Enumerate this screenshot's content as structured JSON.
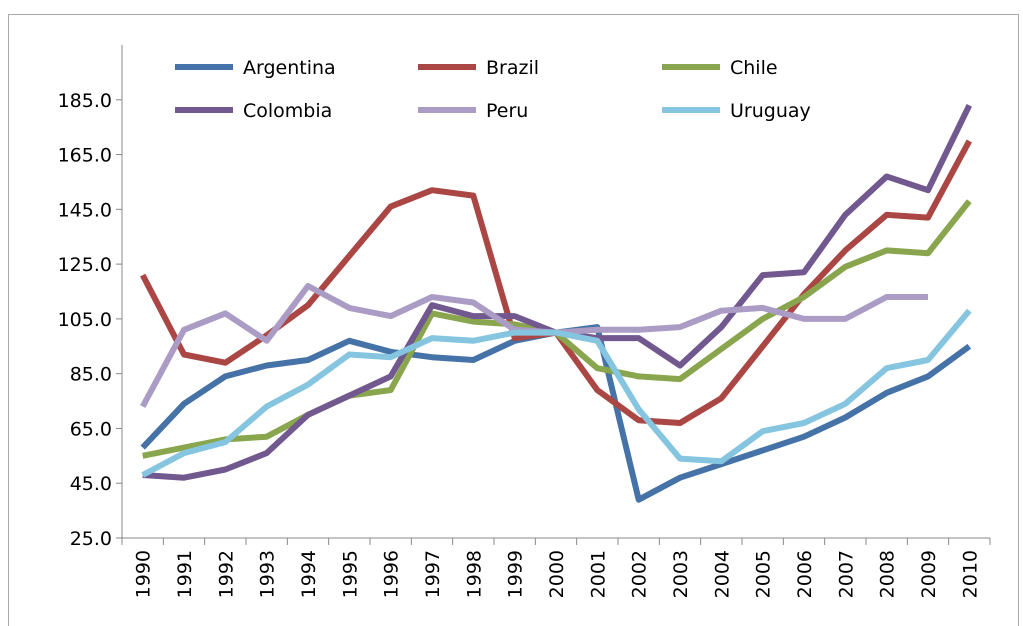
{
  "chart_data": {
    "type": "line",
    "categories": [
      "1990",
      "1991",
      "1992",
      "1993",
      "1994",
      "1995",
      "1996",
      "1997",
      "1998",
      "1999",
      "2000",
      "2001",
      "2002",
      "2003",
      "2004",
      "2005",
      "2006",
      "2007",
      "2008",
      "2009",
      "2010"
    ],
    "series": [
      {
        "name": "Argentina",
        "color": "#4572a7",
        "values": [
          58,
          74,
          84,
          88,
          90,
          97,
          93,
          91,
          90,
          97,
          100,
          102,
          39,
          47,
          52,
          57,
          62,
          69,
          78,
          84,
          95
        ]
      },
      {
        "name": "Brazil",
        "color": "#aa4643",
        "values": [
          121,
          92,
          89,
          99,
          110,
          128,
          146,
          152,
          150,
          98,
          100,
          79,
          68,
          67,
          76,
          95,
          114,
          130,
          143,
          142,
          170
        ]
      },
      {
        "name": "Chile",
        "color": "#89a54e",
        "values": [
          55,
          58,
          61,
          62,
          70,
          77,
          79,
          107,
          104,
          103,
          100,
          87,
          84,
          83,
          94,
          105,
          113,
          124,
          130,
          129,
          148
        ]
      },
      {
        "name": "Colombia",
        "color": "#71588f",
        "values": [
          48,
          47,
          50,
          56,
          70,
          77,
          84,
          110,
          106,
          106,
          100,
          98,
          98,
          88,
          102,
          121,
          122,
          143,
          157,
          152,
          183
        ]
      },
      {
        "name": "Peru",
        "color": "#ab9cc6",
        "values": [
          73,
          101,
          107,
          97,
          117,
          109,
          106,
          113,
          111,
          101,
          100,
          101,
          101,
          102,
          108,
          109,
          105,
          105,
          113,
          113,
          null
        ]
      },
      {
        "name": "Uruguay",
        "color": "#86c5e0",
        "values": [
          48,
          56,
          60,
          73,
          81,
          92,
          91,
          98,
          97,
          100,
          100,
          97,
          72,
          54,
          53,
          64,
          67,
          74,
          87,
          90,
          108
        ]
      }
    ],
    "ylim": [
      25,
      205
    ],
    "yticks": [
      {
        "value": 25,
        "label": "25.0"
      },
      {
        "value": 45,
        "label": "45.0"
      },
      {
        "value": 65,
        "label": "65.0"
      },
      {
        "value": 85,
        "label": "85.0"
      },
      {
        "value": 105,
        "label": "105.0"
      },
      {
        "value": 125,
        "label": "125.0"
      },
      {
        "value": 145,
        "label": "145.0"
      },
      {
        "value": 165,
        "label": "165.0"
      },
      {
        "value": 185,
        "label": "185.0"
      }
    ],
    "grid": false
  }
}
